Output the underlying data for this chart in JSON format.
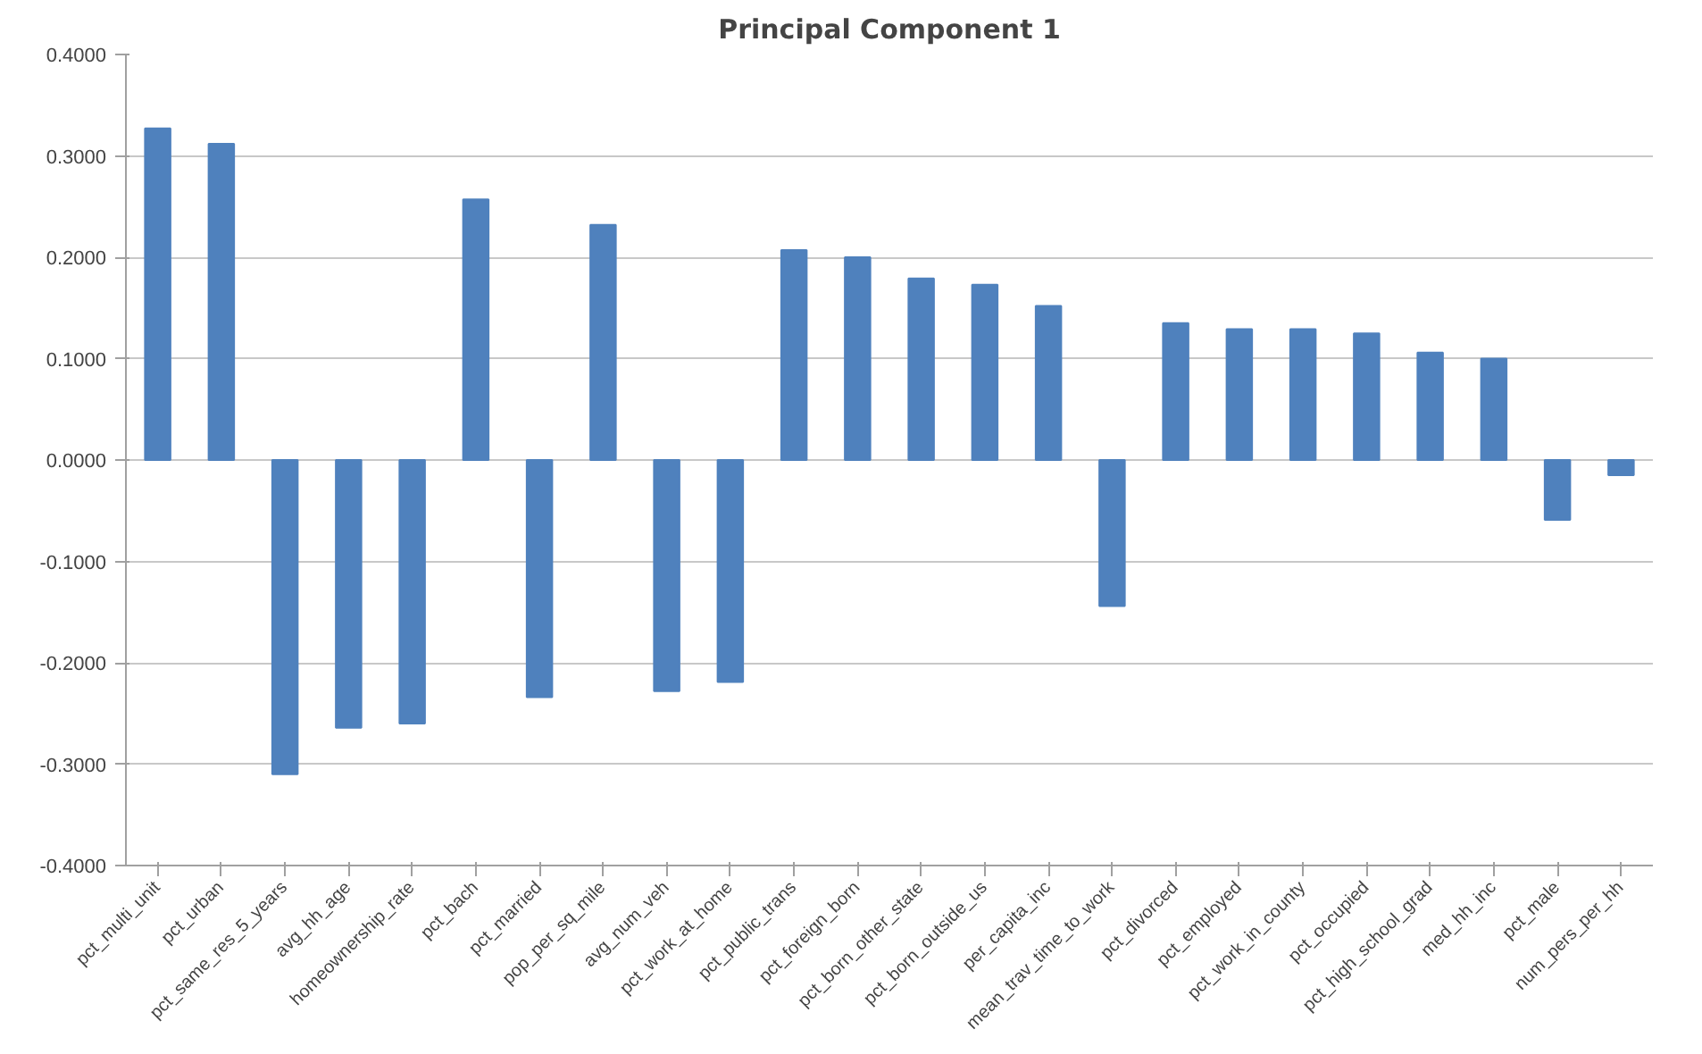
{
  "chart_data": {
    "type": "bar",
    "title": "Principal Component 1",
    "categories": [
      "pct_multi_unit",
      "pct_urban",
      "pct_same_res_5_years",
      "avg_hh_age",
      "homeownership_rate",
      "pct_bach",
      "pct_married",
      "pop_per_sq_mile",
      "avg_num_veh",
      "pct_work_at_home",
      "pct_public_trans",
      "pct_foreign_born",
      "pct_born_other_state",
      "pct_born_outside_us",
      "per_capita_inc",
      "mean_trav_time_to_work",
      "pct_divorced",
      "pct_employed",
      "pct_work_in_county",
      "pct_occupied",
      "pct_high_school_grad",
      "med_hh_inc",
      "pct_male",
      "num_pers_per_hh"
    ],
    "values": [
      0.327,
      0.312,
      -0.31,
      -0.264,
      -0.26,
      0.257,
      -0.234,
      0.232,
      -0.228,
      -0.219,
      0.207,
      0.2,
      0.179,
      0.173,
      0.152,
      -0.144,
      0.135,
      0.129,
      0.129,
      0.125,
      0.106,
      0.1,
      -0.059,
      -0.015
    ],
    "color": "#4f81bd",
    "ylim": [
      -0.4,
      0.4
    ],
    "yticks": [
      {
        "value": -0.4,
        "label": "-0.4000"
      },
      {
        "value": -0.3,
        "label": "-0.3000"
      },
      {
        "value": -0.2,
        "label": "-0.2000"
      },
      {
        "value": -0.1,
        "label": "-0.1000"
      },
      {
        "value": 0,
        "label": "0.0000"
      },
      {
        "value": 0.1,
        "label": "0.1000"
      },
      {
        "value": 0.2,
        "label": "0.2000"
      },
      {
        "value": 0.3,
        "label": "0.3000"
      },
      {
        "value": 0.4,
        "label": "0.4000"
      }
    ],
    "grid": "y"
  }
}
